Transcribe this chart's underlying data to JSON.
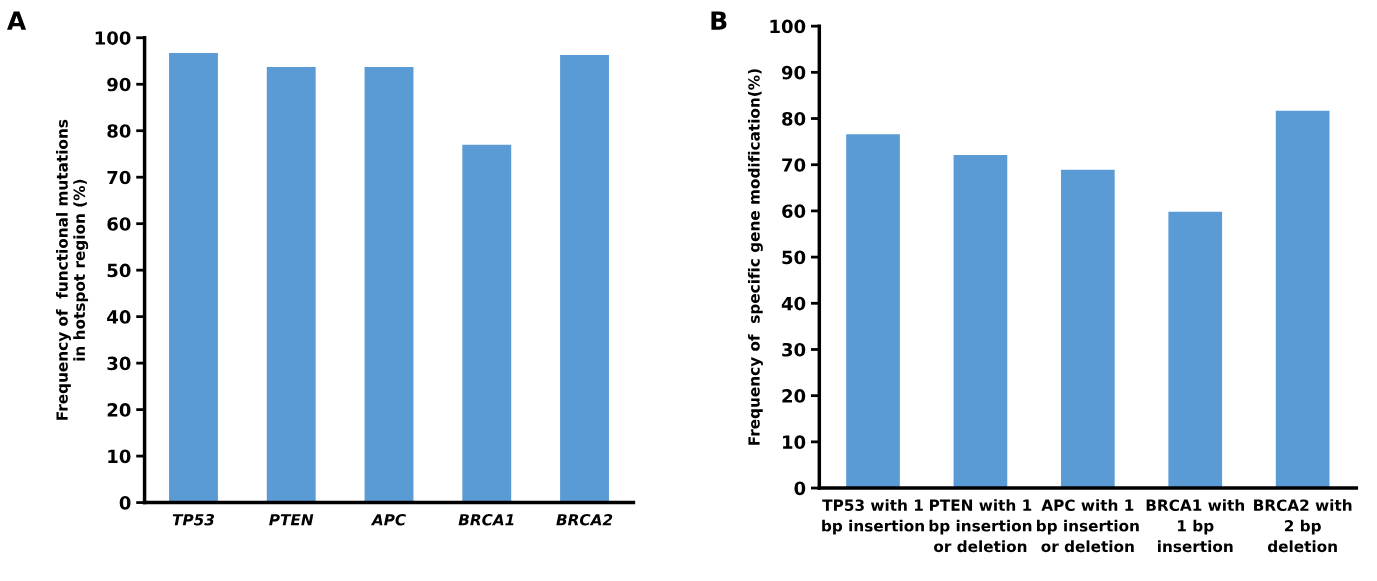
{
  "chart_data": [
    {
      "type": "bar",
      "annotations": [
        "A"
      ],
      "ylabel": "Frequency of  functional mutations\nin hotspot region (%)",
      "categories": [
        "TP53",
        "PTEN",
        "APC",
        "BRCA1",
        "BRCA2"
      ],
      "values": [
        96.7,
        93.7,
        93.7,
        77.0,
        96.3
      ],
      "color": "#5b9bd5",
      "ylim": [
        0,
        100
      ],
      "yticks": [
        0,
        10,
        20,
        30,
        40,
        50,
        60,
        70,
        80,
        90,
        100
      ],
      "grid": false
    },
    {
      "type": "bar",
      "annotations": [
        "B"
      ],
      "ylabel": "Frequency of  specific gene modification(%)",
      "categories": [
        "TP53 with 1\nbp insertion",
        "PTEN with 1\nbp insertion\nor deletion",
        "APC with 1\nbp insertion\nor deletion",
        "BRCA1 with\n1 bp\ninsertion",
        "BRCA2 with\n2 bp\ndeletion"
      ],
      "values": [
        76.6,
        72.1,
        68.9,
        59.8,
        81.7
      ],
      "color": "#5b9bd5",
      "ylim": [
        0,
        100
      ],
      "yticks": [
        0,
        10,
        20,
        30,
        40,
        50,
        60,
        70,
        80,
        90,
        100
      ],
      "grid": false
    }
  ]
}
